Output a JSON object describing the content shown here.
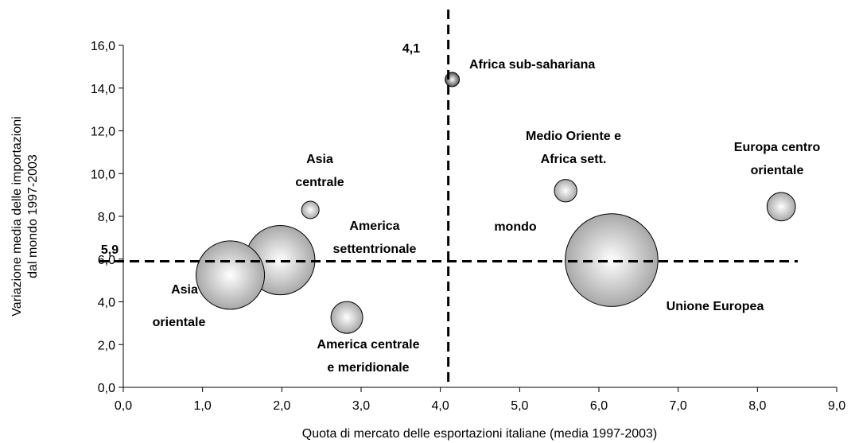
{
  "chart_data": {
    "type": "bubble",
    "x_label": "Quota di mercato delle esportazioni italiane (media 1997-2003)",
    "y_label": [
      "Variazione media delle importazioni",
      "dal mondo 1997-2003"
    ],
    "xlim": [
      0,
      9
    ],
    "ylim": [
      0,
      16
    ],
    "xticks": [
      {
        "value": 0,
        "label": "0,0"
      },
      {
        "value": 1,
        "label": "1,0"
      },
      {
        "value": 2,
        "label": "2,0"
      },
      {
        "value": 3,
        "label": "3,0"
      },
      {
        "value": 4,
        "label": "4,0"
      },
      {
        "value": 5,
        "label": "5,0"
      },
      {
        "value": 6,
        "label": "6,0"
      },
      {
        "value": 7,
        "label": "7,0"
      },
      {
        "value": 8,
        "label": "8,0"
      },
      {
        "value": 9,
        "label": "9,0"
      }
    ],
    "yticks": [
      {
        "value": 0,
        "label": "0,0"
      },
      {
        "value": 2,
        "label": "2,0"
      },
      {
        "value": 4,
        "label": "4,0"
      },
      {
        "value": 6,
        "label": "6,0"
      },
      {
        "value": 8,
        "label": "8,0"
      },
      {
        "value": 10,
        "label": "10,0"
      },
      {
        "value": 12,
        "label": "12,0"
      },
      {
        "value": 14,
        "label": "14,0"
      },
      {
        "value": 16,
        "label": "16,0"
      }
    ],
    "points": [
      {
        "label": [
          "Africa sub-sahariana"
        ],
        "x": 4.15,
        "y": 14.4,
        "size": 0.8,
        "color": "#505050"
      },
      {
        "label": [
          "Medio Oriente e",
          "Africa sett."
        ],
        "x": 5.58,
        "y": 9.2,
        "size": 2,
        "color": "#a8a8a8"
      },
      {
        "label": [
          "Europa centro",
          "orientale"
        ],
        "x": 8.3,
        "y": 8.45,
        "size": 3.2,
        "color": "#a8a8a8"
      },
      {
        "label": [
          "Unione Europea"
        ],
        "x": 6.16,
        "y": 5.95,
        "size": 34,
        "color": "#a8a8a8"
      },
      {
        "label": [
          "Asia",
          "centrale"
        ],
        "x": 2.36,
        "y": 8.3,
        "size": 1.2,
        "color": "#a8a8a8"
      },
      {
        "label": [
          "America",
          "settentrionale"
        ],
        "x": 1.98,
        "y": 5.95,
        "size": 19,
        "color": "#a8a8a8"
      },
      {
        "label": [
          "Asia",
          "orientale"
        ],
        "x": 1.35,
        "y": 5.25,
        "size": 18.5,
        "color": "#a8a8a8"
      },
      {
        "label": [
          "America centrale",
          "e meridionale"
        ],
        "x": 2.82,
        "y": 3.27,
        "size": 4,
        "color": "#a8a8a8"
      }
    ],
    "annotations": [
      "mondo"
    ],
    "x_ref": {
      "value": 4.1,
      "label": "4,1"
    },
    "y_ref": {
      "value": 5.9,
      "label": "5,9"
    }
  }
}
